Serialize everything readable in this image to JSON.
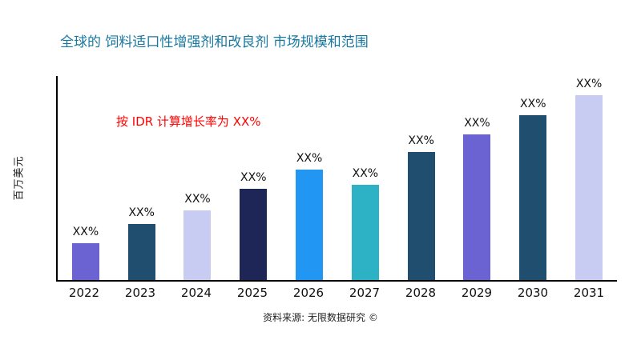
{
  "header": {
    "title": "全球的 饲料适口性增强剂和改良剂 市场规模和范围"
  },
  "annotation": {
    "text": "按 IDR 计算增长率为 XX%",
    "color": "#FF0000"
  },
  "footer": {
    "source": "资料来源: 无限数据研究 ©"
  },
  "colors": {
    "title": "#1878A0",
    "axis": "#000000",
    "background": "#FFFFFF"
  },
  "chart_data": {
    "type": "bar",
    "title": "全球的 饲料适口性增强剂和改良剂 市场规模和范围",
    "xlabel": "",
    "ylabel": "百万美元",
    "categories": [
      "2022",
      "2023",
      "2024",
      "2025",
      "2026",
      "2027",
      "2028",
      "2029",
      "2030",
      "2031"
    ],
    "values": [
      19,
      29,
      36,
      47,
      57,
      49,
      66,
      75,
      85,
      95
    ],
    "bar_labels": [
      "XX%",
      "XX%",
      "XX%",
      "XX%",
      "XX%",
      "XX%",
      "XX%",
      "XX%",
      "XX%",
      "XX%"
    ],
    "bar_colors": [
      "#6C63D2",
      "#1F4E6F",
      "#C9CCF2",
      "#1E2557",
      "#2196F3",
      "#2CB2C4",
      "#1F4E6F",
      "#6C63D2",
      "#1F4E6F",
      "#C9CCF2"
    ],
    "ylim": [
      0,
      105
    ],
    "grid": false,
    "legend": false,
    "annotation": "按 IDR 计算增长率为 XX%"
  }
}
